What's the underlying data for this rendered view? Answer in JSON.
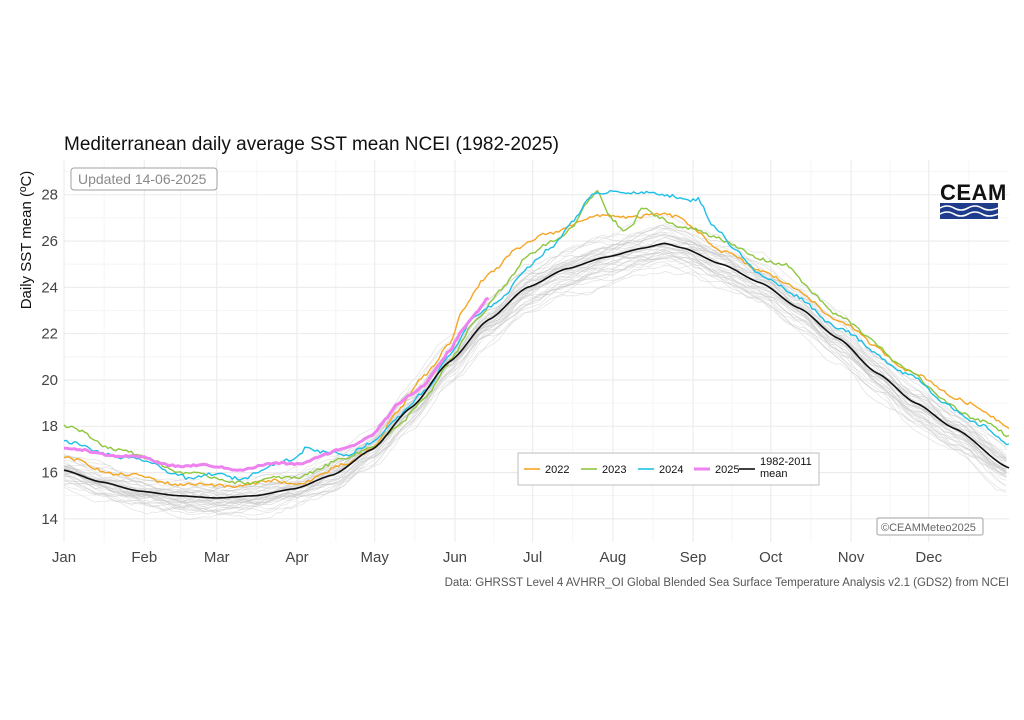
{
  "chart_data": {
    "type": "line",
    "title": "Mediterranean daily average SST mean NCEI (1982-2025)",
    "ylabel": "Daily SST mean (ºC)",
    "xlabel": "",
    "ylim": [
      13,
      29.5
    ],
    "y_ticks": [
      14,
      16,
      18,
      20,
      22,
      24,
      26,
      28
    ],
    "x_tick_labels": [
      "Jan",
      "Feb",
      "Mar",
      "Apr",
      "May",
      "Jun",
      "Jul",
      "Aug",
      "Sep",
      "Oct",
      "Nov",
      "Dec"
    ],
    "x_tick_days": [
      1,
      32,
      60,
      91,
      121,
      152,
      182,
      213,
      244,
      274,
      305,
      335
    ],
    "xlim_days": [
      1,
      366
    ],
    "grid": true,
    "legend_position": "bottom-center",
    "series": [
      {
        "name": "1982-2011 mean",
        "legend_label_lines": [
          "1982-2011",
          "mean"
        ],
        "color": "#111111",
        "points": [
          [
            1,
            16.1
          ],
          [
            15,
            15.6
          ],
          [
            30,
            15.2
          ],
          [
            45,
            15.0
          ],
          [
            60,
            14.9
          ],
          [
            75,
            15.0
          ],
          [
            90,
            15.3
          ],
          [
            105,
            15.9
          ],
          [
            120,
            17.0
          ],
          [
            135,
            18.8
          ],
          [
            150,
            20.8
          ],
          [
            165,
            22.6
          ],
          [
            180,
            24.0
          ],
          [
            195,
            24.8
          ],
          [
            210,
            25.3
          ],
          [
            225,
            25.7
          ],
          [
            233,
            25.9
          ],
          [
            240,
            25.7
          ],
          [
            255,
            25.0
          ],
          [
            270,
            24.2
          ],
          [
            285,
            23.1
          ],
          [
            300,
            21.8
          ],
          [
            315,
            20.3
          ],
          [
            330,
            19.0
          ],
          [
            345,
            17.9
          ],
          [
            366,
            16.2
          ]
        ]
      },
      {
        "name": "2022",
        "color": "#f5a623",
        "points": [
          [
            1,
            16.6
          ],
          [
            20,
            16.0
          ],
          [
            40,
            15.6
          ],
          [
            60,
            15.4
          ],
          [
            80,
            15.6
          ],
          [
            90,
            15.5
          ],
          [
            100,
            15.9
          ],
          [
            110,
            16.3
          ],
          [
            120,
            17.1
          ],
          [
            130,
            18.6
          ],
          [
            140,
            20.2
          ],
          [
            150,
            21.6
          ],
          [
            155,
            23.0
          ],
          [
            165,
            24.6
          ],
          [
            175,
            25.6
          ],
          [
            190,
            26.4
          ],
          [
            200,
            26.9
          ],
          [
            215,
            27.1
          ],
          [
            230,
            27.1
          ],
          [
            240,
            27.0
          ],
          [
            245,
            26.5
          ],
          [
            255,
            25.5
          ],
          [
            270,
            24.8
          ],
          [
            285,
            23.8
          ],
          [
            300,
            22.6
          ],
          [
            315,
            21.4
          ],
          [
            330,
            20.2
          ],
          [
            345,
            19.3
          ],
          [
            366,
            18.0
          ]
        ]
      },
      {
        "name": "2023",
        "color": "#8dc63f",
        "points": [
          [
            1,
            18.0
          ],
          [
            20,
            17.1
          ],
          [
            35,
            16.5
          ],
          [
            45,
            16.1
          ],
          [
            60,
            15.7
          ],
          [
            75,
            15.6
          ],
          [
            90,
            15.8
          ],
          [
            100,
            16.2
          ],
          [
            110,
            16.6
          ],
          [
            120,
            17.2
          ],
          [
            130,
            17.9
          ],
          [
            140,
            19.2
          ],
          [
            150,
            20.8
          ],
          [
            160,
            22.5
          ],
          [
            170,
            24.0
          ],
          [
            180,
            25.3
          ],
          [
            190,
            26.0
          ],
          [
            197,
            26.6
          ],
          [
            203,
            27.6
          ],
          [
            207,
            28.1
          ],
          [
            212,
            27.0
          ],
          [
            217,
            26.5
          ],
          [
            221,
            26.8
          ],
          [
            224,
            27.5
          ],
          [
            230,
            27.0
          ],
          [
            238,
            26.6
          ],
          [
            245,
            26.6
          ],
          [
            252,
            26.2
          ],
          [
            260,
            25.7
          ],
          [
            270,
            25.3
          ],
          [
            280,
            24.9
          ],
          [
            290,
            23.8
          ],
          [
            300,
            22.8
          ],
          [
            312,
            21.8
          ],
          [
            325,
            20.6
          ],
          [
            340,
            19.2
          ],
          [
            355,
            18.2
          ],
          [
            366,
            17.6
          ]
        ]
      },
      {
        "name": "2024",
        "color": "#1ebfe6",
        "points": [
          [
            1,
            17.3
          ],
          [
            15,
            16.9
          ],
          [
            30,
            16.5
          ],
          [
            45,
            16.0
          ],
          [
            50,
            15.7
          ],
          [
            60,
            15.9
          ],
          [
            70,
            15.8
          ],
          [
            80,
            16.2
          ],
          [
            90,
            16.6
          ],
          [
            95,
            17.2
          ],
          [
            100,
            16.9
          ],
          [
            110,
            16.7
          ],
          [
            120,
            17.4
          ],
          [
            130,
            18.3
          ],
          [
            140,
            19.5
          ],
          [
            150,
            21.1
          ],
          [
            160,
            22.7
          ],
          [
            170,
            23.6
          ],
          [
            180,
            24.8
          ],
          [
            190,
            25.8
          ],
          [
            197,
            26.9
          ],
          [
            205,
            27.9
          ],
          [
            215,
            28.2
          ],
          [
            225,
            28.1
          ],
          [
            235,
            27.9
          ],
          [
            242,
            27.8
          ],
          [
            246,
            27.9
          ],
          [
            252,
            26.6
          ],
          [
            260,
            25.6
          ],
          [
            270,
            24.6
          ],
          [
            285,
            23.5
          ],
          [
            300,
            22.3
          ],
          [
            315,
            21.1
          ],
          [
            328,
            20.2
          ],
          [
            340,
            19.1
          ],
          [
            355,
            18.0
          ],
          [
            366,
            17.2
          ]
        ]
      },
      {
        "name": "2025",
        "color": "#ee82ee",
        "points": [
          [
            1,
            17.0
          ],
          [
            10,
            16.9
          ],
          [
            20,
            16.8
          ],
          [
            30,
            16.6
          ],
          [
            40,
            16.4
          ],
          [
            50,
            16.3
          ],
          [
            60,
            16.2
          ],
          [
            70,
            16.2
          ],
          [
            80,
            16.3
          ],
          [
            90,
            16.4
          ],
          [
            100,
            16.7
          ],
          [
            110,
            17.0
          ],
          [
            120,
            17.7
          ],
          [
            125,
            18.3
          ],
          [
            130,
            18.9
          ],
          [
            135,
            19.3
          ],
          [
            140,
            19.8
          ],
          [
            145,
            20.6
          ],
          [
            150,
            21.3
          ],
          [
            155,
            22.1
          ],
          [
            160,
            22.8
          ],
          [
            165,
            23.6
          ]
        ]
      }
    ],
    "annotations": {
      "updated": "Updated 14-06-2025",
      "copyright": "©CEAMMeteo2025",
      "source": "Data: GHRSST Level 4 AVHRR_OI Global Blended Sea Surface Temperature Analysis v2.1 (GDS2) from NCEI"
    },
    "logo_text": "CEAM",
    "colors": {
      "background_years": "#c8c8c8",
      "grid": "#ebebeb",
      "logo_blue": "#1f3b8c"
    }
  }
}
